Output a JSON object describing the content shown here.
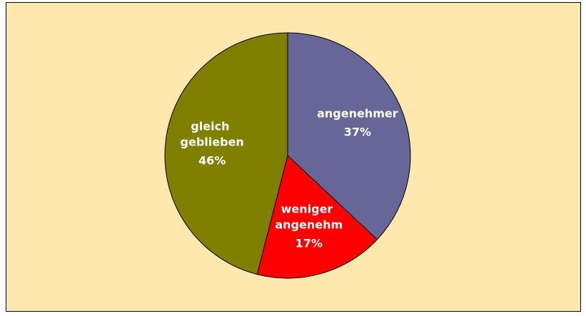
{
  "chart_data": {
    "type": "pie",
    "categories": [
      "angenehmer",
      "weniger angenehm",
      "gleich geblieben"
    ],
    "values": [
      37,
      17,
      46
    ],
    "value_labels": [
      "37%",
      "17%",
      "46%"
    ],
    "colors": [
      "#666699",
      "#ff0000",
      "#808000"
    ]
  }
}
